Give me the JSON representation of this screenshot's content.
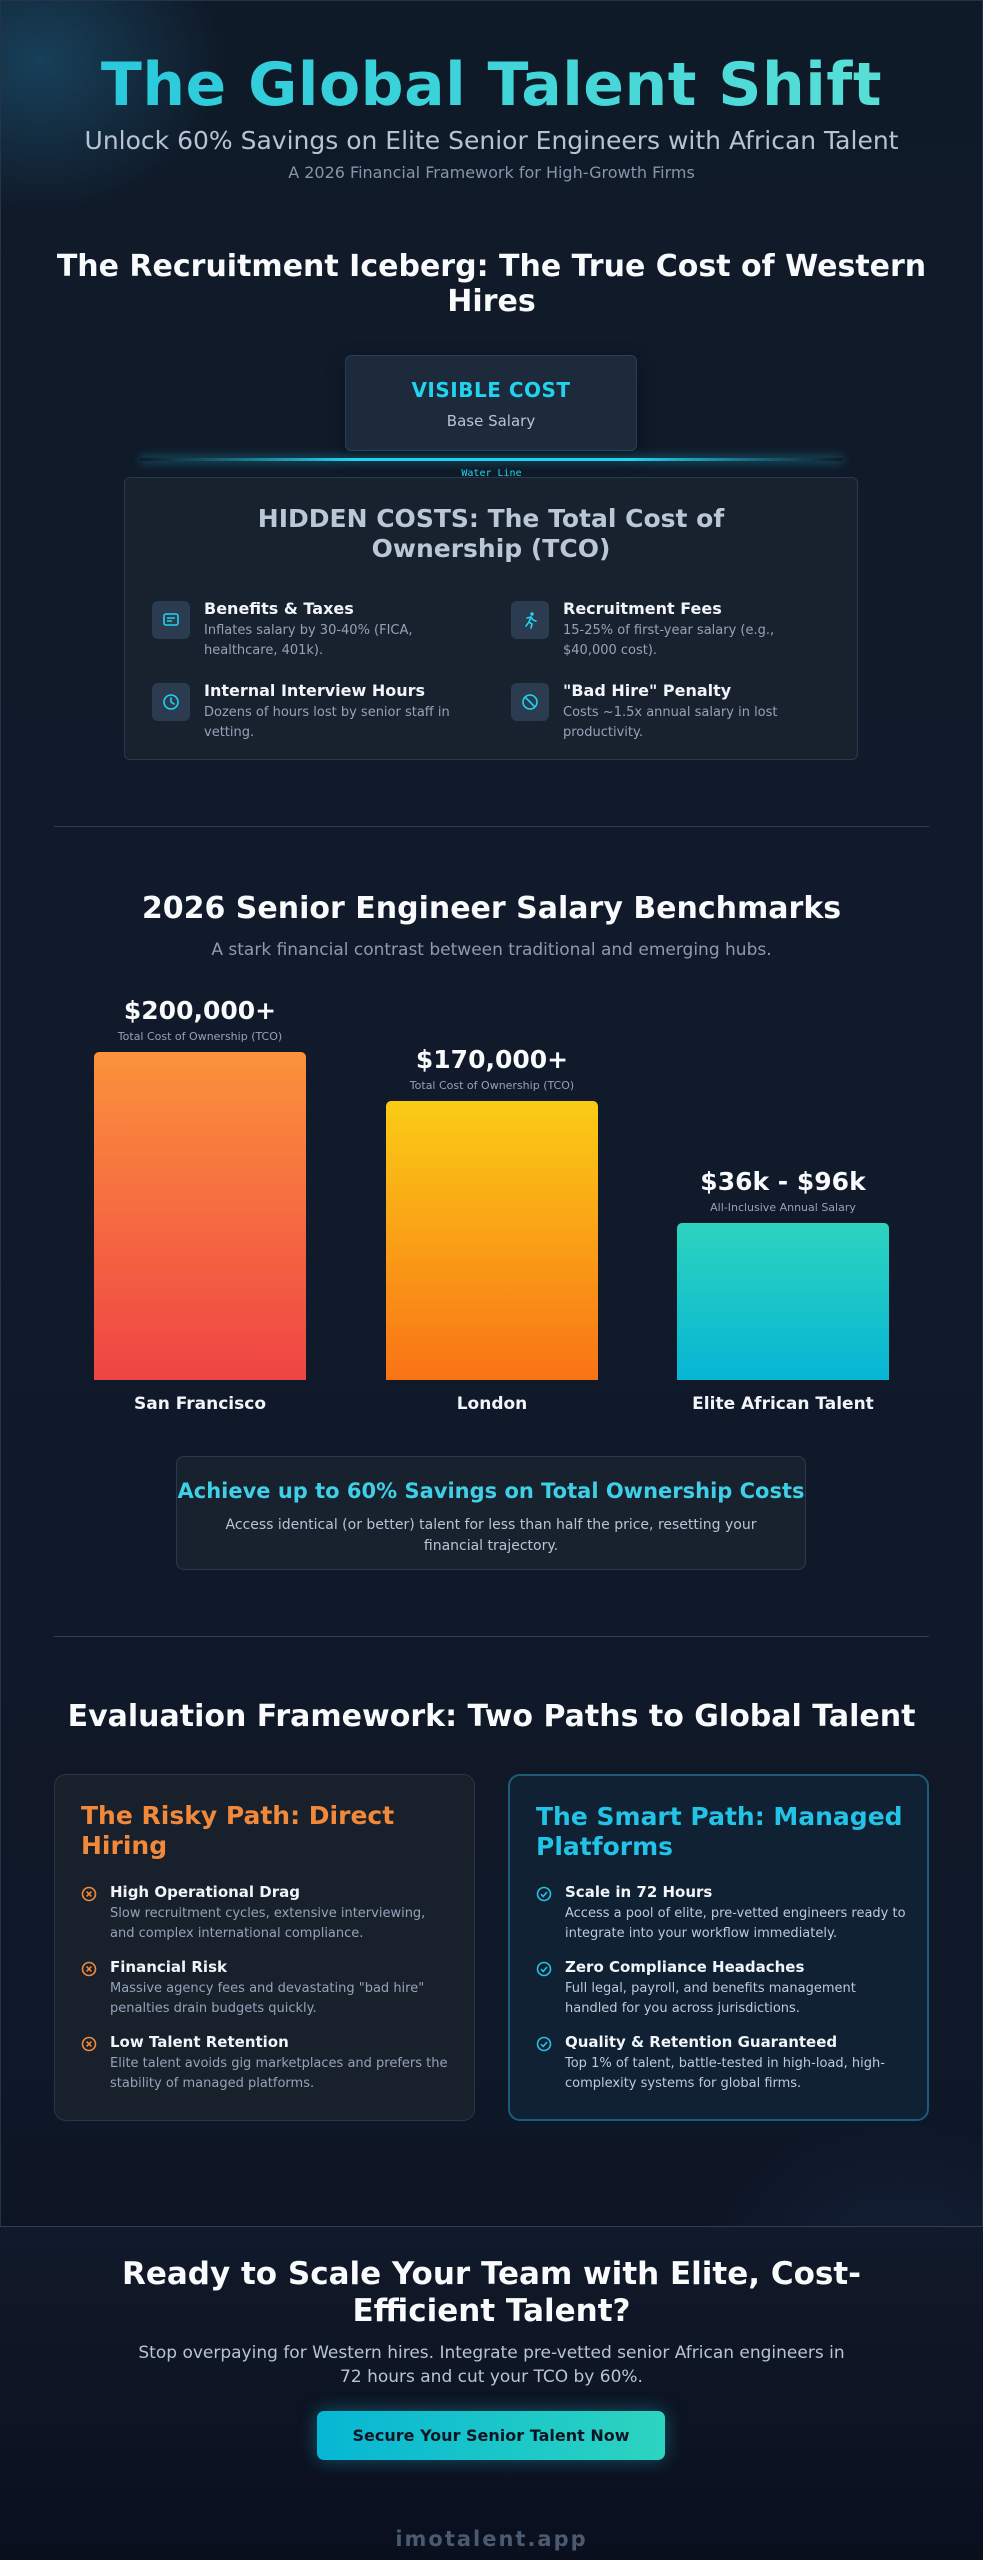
{
  "header": {
    "title": "The Global Talent Shift",
    "subtitle": "Unlock 60% Savings on Elite Senior Engineers with African Talent",
    "tagline": "A 2026 Financial Framework for High-Growth Firms"
  },
  "iceberg": {
    "title": "The Recruitment Iceberg: The True Cost of Western Hires",
    "visible_title": "VISIBLE COST",
    "visible_sub": "Base Salary",
    "water_label": "Water Line",
    "hidden_title": "HIDDEN COSTS: The Total Cost of Ownership (TCO)",
    "items": [
      {
        "title": "Benefits & Taxes",
        "desc": "Inflates salary by 30-40% (FICA, healthcare, 401k).",
        "icon": "receipt-icon"
      },
      {
        "title": "Recruitment Fees",
        "desc": "15-25% of first-year salary (e.g., $40,000 cost).",
        "icon": "running-person-icon"
      },
      {
        "title": "Internal Interview Hours",
        "desc": "Dozens of hours lost by senior staff in vetting.",
        "icon": "clock-icon"
      },
      {
        "title": "\"Bad Hire\" Penalty",
        "desc": "Costs ~1.5x annual salary in lost productivity.",
        "icon": "prohibited-icon"
      }
    ]
  },
  "benchmarks": {
    "title": "2026 Senior Engineer Salary Benchmarks",
    "subtitle": "A stark financial contrast between traditional and emerging hubs."
  },
  "chart_data": {
    "type": "bar",
    "title": "2026 Senior Engineer Salary Benchmarks",
    "categories": [
      "San Francisco",
      "London",
      "Elite African Talent"
    ],
    "values": [
      200000,
      170000,
      96000
    ],
    "value_labels": [
      "$200,000+",
      "$170,000+",
      "$36k - $96k"
    ],
    "captions": [
      "Total Cost of Ownership (TCO)",
      "Total Cost of Ownership (TCO)",
      "All-Inclusive Annual Salary"
    ],
    "ylim": [
      0,
      200000
    ],
    "colors": [
      [
        "#fb923c",
        "#ef4444"
      ],
      [
        "#facc15",
        "#f97316"
      ],
      [
        "#2dd4bf",
        "#06b6d4"
      ]
    ]
  },
  "savings": {
    "title": "Achieve up to 60% Savings on Total Ownership Costs",
    "desc": "Access identical (or better) talent for less than half the price, resetting your financial trajectory."
  },
  "framework": {
    "title": "Evaluation Framework: Two Paths to Global Talent",
    "risky": {
      "title": "The Risky Path: Direct Hiring",
      "color": "#f2893a",
      "items": [
        {
          "title": "High Operational Drag",
          "desc": "Slow recruitment cycles, extensive interviewing, and complex international compliance."
        },
        {
          "title": "Financial Risk",
          "desc": "Massive agency fees and devastating \"bad hire\" penalties drain budgets quickly."
        },
        {
          "title": "Low Talent Retention",
          "desc": "Elite talent avoids gig marketplaces and prefers the stability of managed platforms."
        }
      ]
    },
    "smart": {
      "title": "The Smart Path: Managed Platforms",
      "color": "#22c3e6",
      "items": [
        {
          "title": "Scale in 72 Hours",
          "desc": "Access a pool of elite, pre-vetted engineers ready to integrate into your workflow immediately."
        },
        {
          "title": "Zero Compliance Headaches",
          "desc": "Full legal, payroll, and benefits management handled for you across jurisdictions."
        },
        {
          "title": "Quality & Retention Guaranteed",
          "desc": "Top 1% of talent, battle-tested in high-load, high-complexity systems for global firms."
        }
      ]
    }
  },
  "cta": {
    "title": "Ready to Scale Your Team with Elite, Cost-Efficient Talent?",
    "desc": "Stop overpaying for Western hires. Integrate pre-vetted senior African engineers in 72 hours and cut your TCO by 60%.",
    "button": "Secure Your Senior Talent Now"
  },
  "footer": {
    "brand": "imotalent.app"
  }
}
